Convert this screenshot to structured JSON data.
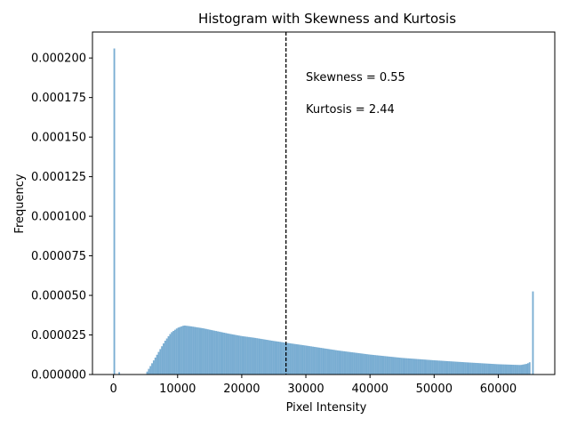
{
  "chart_data": {
    "type": "bar",
    "title": "Histogram with Skewness and Kurtosis",
    "xlabel": "Pixel Intensity",
    "ylabel": "Frequency",
    "xlim": [
      -3277,
      68812
    ],
    "ylim": [
      0,
      0.0002164
    ],
    "xticks": [
      0,
      10000,
      20000,
      30000,
      40000,
      50000,
      60000
    ],
    "xtick_labels": [
      "0",
      "10000",
      "20000",
      "30000",
      "40000",
      "50000",
      "60000"
    ],
    "yticks": [
      0,
      2.5e-05,
      5e-05,
      7.5e-05,
      0.0001,
      0.000125,
      0.00015,
      0.000175,
      0.0002
    ],
    "ytick_labels": [
      "0.000000",
      "0.000025",
      "0.000050",
      "0.000075",
      "0.000100",
      "0.000125",
      "0.000150",
      "0.000175",
      "0.000200"
    ],
    "bar_color": "#1f77b4",
    "bar_alpha": 0.6,
    "bin_width": 256,
    "spike_bins": [
      {
        "x": 0,
        "value": 0.000206
      },
      {
        "x": 1000,
        "value": 1.5e-06
      },
      {
        "x": 65280,
        "value": 5.25e-05
      }
    ],
    "profile": [
      {
        "x": 5000,
        "value": 0.0
      },
      {
        "x": 5200,
        "value": 1.5e-06
      },
      {
        "x": 6000,
        "value": 7e-06
      },
      {
        "x": 7000,
        "value": 1.4e-05
      },
      {
        "x": 8000,
        "value": 2.1e-05
      },
      {
        "x": 9000,
        "value": 2.65e-05
      },
      {
        "x": 10000,
        "value": 2.95e-05
      },
      {
        "x": 11000,
        "value": 3.1e-05
      },
      {
        "x": 12000,
        "value": 3.05e-05
      },
      {
        "x": 14000,
        "value": 2.92e-05
      },
      {
        "x": 16000,
        "value": 2.75e-05
      },
      {
        "x": 18000,
        "value": 2.58e-05
      },
      {
        "x": 20000,
        "value": 2.43e-05
      },
      {
        "x": 22000,
        "value": 2.32e-05
      },
      {
        "x": 25000,
        "value": 2.12e-05
      },
      {
        "x": 30000,
        "value": 1.83e-05
      },
      {
        "x": 35000,
        "value": 1.52e-05
      },
      {
        "x": 40000,
        "value": 1.26e-05
      },
      {
        "x": 45000,
        "value": 1.05e-05
      },
      {
        "x": 50000,
        "value": 9e-06
      },
      {
        "x": 55000,
        "value": 7.7e-06
      },
      {
        "x": 60000,
        "value": 6.5e-06
      },
      {
        "x": 63500,
        "value": 6e-06
      },
      {
        "x": 64500,
        "value": 6.8e-06
      },
      {
        "x": 65000,
        "value": 8e-06
      }
    ],
    "mean_line": {
      "x": 26900,
      "style": "dashed",
      "color": "#000000"
    },
    "annotations": [
      {
        "name": "skewness",
        "text": "Skewness = 0.55"
      },
      {
        "name": "kurtosis",
        "text": "Kurtosis = 2.44"
      }
    ]
  }
}
